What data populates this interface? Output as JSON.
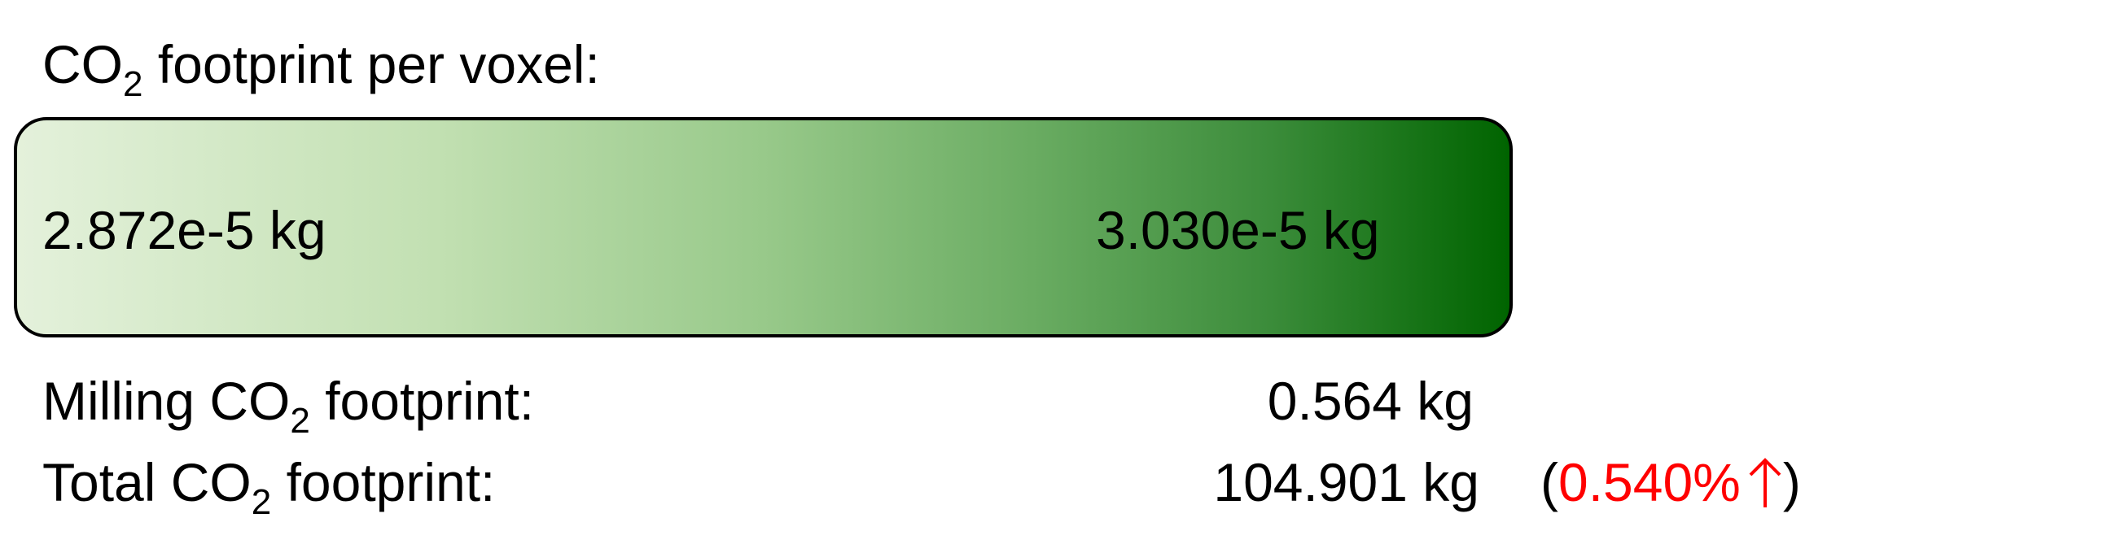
{
  "heading": {
    "prefix": "CO",
    "subscript": "2",
    "suffix": " footprint per voxel:"
  },
  "legend": {
    "min_label": "2.872e-5 kg",
    "max_label": "3.030e-5 kg",
    "gradient_start_color": "#e4f1db",
    "gradient_end_color": "#006400"
  },
  "milling": {
    "label_prefix": "Milling CO",
    "label_subscript": "2",
    "label_suffix": " footprint:",
    "value": "0.564 kg"
  },
  "total": {
    "label_prefix": "Total CO",
    "label_subscript": "2",
    "label_suffix": " footprint:",
    "value": "104.901 kg",
    "change_open": "(",
    "change_value": "0.540%",
    "change_icon": "up-arrow-icon",
    "change_close": ")",
    "change_color": "#ff0000"
  }
}
